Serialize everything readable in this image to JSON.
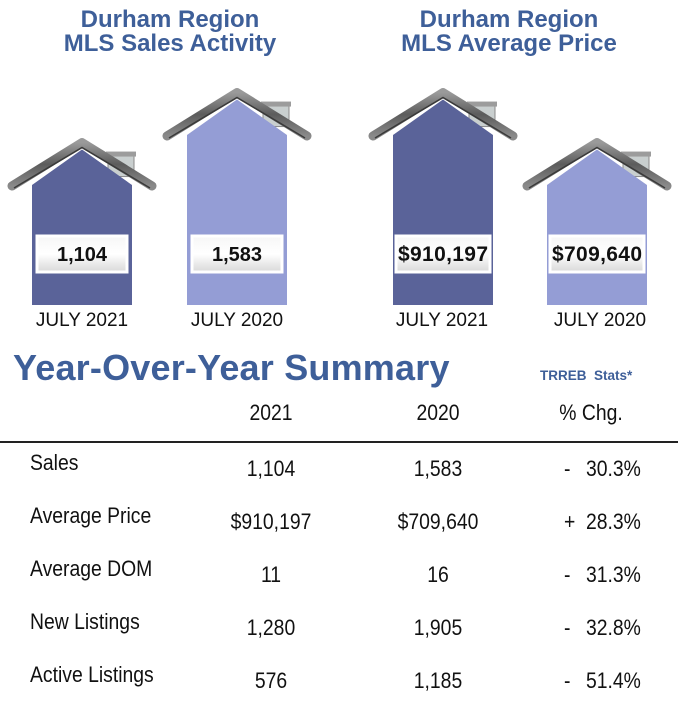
{
  "chart_data": [
    {
      "type": "bar",
      "title": "Durham Region MLS Sales Activity",
      "title_lines": [
        "Durham Region",
        "MLS Sales Activity"
      ],
      "categories": [
        "JULY 2021",
        "JULY 2020"
      ],
      "values": [
        1104,
        1583
      ],
      "value_labels": [
        "1,104",
        "1,583"
      ],
      "colors": [
        "#5a6399",
        "#949dd5"
      ],
      "mark_shape": "house"
    },
    {
      "type": "bar",
      "title": "Durham Region MLS Average Price",
      "title_lines": [
        "Durham Region",
        "MLS Average Price"
      ],
      "categories": [
        "JULY 2021",
        "JULY 2020"
      ],
      "values": [
        910197,
        709640
      ],
      "value_labels": [
        "$910,197",
        "$709,640"
      ],
      "colors": [
        "#5a6399",
        "#949dd5"
      ],
      "mark_shape": "house"
    }
  ],
  "summary": {
    "title": "Year-Over-Year Summary",
    "source_note": "TRREB  Stats*",
    "columns": [
      "2021",
      "2020",
      "% Chg."
    ],
    "rows": [
      {
        "label": "Sales",
        "y2021": "1,104",
        "y2020": "1,583",
        "sign": "-",
        "pct": "30.3%"
      },
      {
        "label": "Average Price",
        "y2021": "$910,197",
        "y2020": "$709,640",
        "sign": "+",
        "pct": "28.3%"
      },
      {
        "label": "Average DOM",
        "y2021": "11",
        "y2020": "16",
        "sign": "-",
        "pct": "31.3%"
      },
      {
        "label": "New Listings",
        "y2021": "1,280",
        "y2020": "1,905",
        "sign": "-",
        "pct": "32.8%"
      },
      {
        "label": "Active Listings",
        "y2021": "576",
        "y2020": "1,185",
        "sign": "-",
        "pct": "51.4%"
      }
    ]
  },
  "colors": {
    "title_blue": "#3e5f99",
    "house_dark": "#5a6399",
    "house_light": "#949dd5",
    "roof_gray": "#6e6e6e"
  }
}
